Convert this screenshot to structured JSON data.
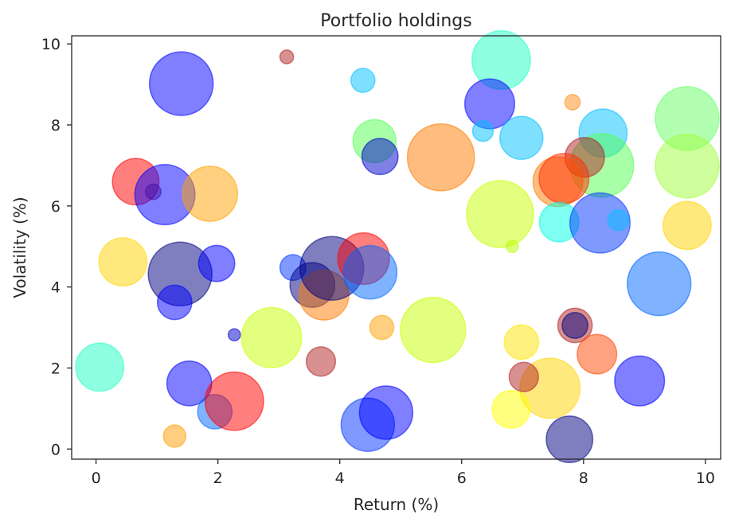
{
  "chart_data": {
    "type": "scatter",
    "title": "Portfolio holdings",
    "xlabel": "Return (%)",
    "ylabel": "Volatility (%)",
    "xlim": [
      -0.4,
      10.25
    ],
    "ylim": [
      -0.25,
      10.2
    ],
    "xticks": [
      "0",
      "2",
      "4",
      "6",
      "8",
      "10"
    ],
    "yticks": [
      "0",
      "2",
      "4",
      "6",
      "8",
      "10"
    ],
    "grid": false,
    "legend": "none",
    "marker_alpha": 0.5,
    "note": "Each point: x = return, y = volatility, s = relative bubble size (0-1), c = color",
    "points": [
      {
        "x": 1.4,
        "y": 9.02,
        "s": 0.74,
        "c": "#0000ff"
      },
      {
        "x": 3.13,
        "y": 9.68,
        "s": 0.16,
        "c": "#b22222"
      },
      {
        "x": 4.38,
        "y": 9.1,
        "s": 0.28,
        "c": "#00bfff"
      },
      {
        "x": 6.65,
        "y": 9.6,
        "s": 0.68,
        "c": "#1dffc4"
      },
      {
        "x": 6.46,
        "y": 8.52,
        "s": 0.58,
        "c": "#0000ff"
      },
      {
        "x": 7.82,
        "y": 8.56,
        "s": 0.18,
        "c": "#ff8c1a"
      },
      {
        "x": 9.7,
        "y": 8.16,
        "s": 0.74,
        "c": "#66ff66"
      },
      {
        "x": 4.57,
        "y": 7.6,
        "s": 0.5,
        "c": "#52ff52"
      },
      {
        "x": 4.66,
        "y": 7.22,
        "s": 0.42,
        "c": "#0000cd"
      },
      {
        "x": 5.66,
        "y": 7.2,
        "s": 0.78,
        "c": "#ff7a00"
      },
      {
        "x": 6.35,
        "y": 7.85,
        "s": 0.24,
        "c": "#00bfff"
      },
      {
        "x": 6.98,
        "y": 7.68,
        "s": 0.5,
        "c": "#00bfff"
      },
      {
        "x": 8.32,
        "y": 7.8,
        "s": 0.56,
        "c": "#00bfff"
      },
      {
        "x": 8.3,
        "y": 7.0,
        "s": 0.74,
        "c": "#52ff52"
      },
      {
        "x": 8.02,
        "y": 7.2,
        "s": 0.46,
        "c": "#b22222"
      },
      {
        "x": 7.58,
        "y": 6.6,
        "s": 0.58,
        "c": "#ff7a00"
      },
      {
        "x": 7.68,
        "y": 6.68,
        "s": 0.58,
        "c": "#ff2a00"
      },
      {
        "x": 9.7,
        "y": 6.98,
        "s": 0.74,
        "c": "#9fff3c"
      },
      {
        "x": 0.65,
        "y": 6.6,
        "s": 0.54,
        "c": "#ff0000"
      },
      {
        "x": 0.94,
        "y": 6.35,
        "s": 0.18,
        "c": "#8b2250"
      },
      {
        "x": 1.13,
        "y": 6.28,
        "s": 0.7,
        "c": "#0000ff"
      },
      {
        "x": 1.87,
        "y": 6.3,
        "s": 0.64,
        "c": "#ffa200"
      },
      {
        "x": 6.63,
        "y": 5.8,
        "s": 0.78,
        "c": "#c8ff00"
      },
      {
        "x": 7.6,
        "y": 5.6,
        "s": 0.46,
        "c": "#00ffe4"
      },
      {
        "x": 8.27,
        "y": 5.58,
        "s": 0.7,
        "c": "#0033ff"
      },
      {
        "x": 8.57,
        "y": 5.65,
        "s": 0.24,
        "c": "#00bfff"
      },
      {
        "x": 9.7,
        "y": 5.52,
        "s": 0.56,
        "c": "#ffd400"
      },
      {
        "x": 6.83,
        "y": 5.0,
        "s": 0.14,
        "c": "#b6ff00"
      },
      {
        "x": 0.44,
        "y": 4.62,
        "s": 0.56,
        "c": "#ffd400"
      },
      {
        "x": 1.38,
        "y": 4.32,
        "s": 0.74,
        "c": "#000080"
      },
      {
        "x": 1.98,
        "y": 4.58,
        "s": 0.42,
        "c": "#0000ff"
      },
      {
        "x": 1.29,
        "y": 3.62,
        "s": 0.4,
        "c": "#0000ff"
      },
      {
        "x": 3.23,
        "y": 4.48,
        "s": 0.3,
        "c": "#0033ff"
      },
      {
        "x": 3.55,
        "y": 4.05,
        "s": 0.52,
        "c": "#000080"
      },
      {
        "x": 3.74,
        "y": 3.8,
        "s": 0.58,
        "c": "#ff7a00"
      },
      {
        "x": 3.87,
        "y": 4.46,
        "s": 0.74,
        "c": "#000080"
      },
      {
        "x": 4.39,
        "y": 4.7,
        "s": 0.6,
        "c": "#ff0000"
      },
      {
        "x": 4.5,
        "y": 4.36,
        "s": 0.62,
        "c": "#0066ff"
      },
      {
        "x": 9.24,
        "y": 4.08,
        "s": 0.74,
        "c": "#0066ff"
      },
      {
        "x": 2.27,
        "y": 2.82,
        "s": 0.14,
        "c": "#0000cd"
      },
      {
        "x": 2.88,
        "y": 2.75,
        "s": 0.7,
        "c": "#c8ff00"
      },
      {
        "x": 3.69,
        "y": 2.16,
        "s": 0.34,
        "c": "#b22222"
      },
      {
        "x": 4.69,
        "y": 3.0,
        "s": 0.28,
        "c": "#ffa200"
      },
      {
        "x": 5.53,
        "y": 2.94,
        "s": 0.76,
        "c": "#c8ff00"
      },
      {
        "x": 6.98,
        "y": 2.64,
        "s": 0.4,
        "c": "#ffe400"
      },
      {
        "x": 7.86,
        "y": 3.05,
        "s": 0.4,
        "c": "#b22222"
      },
      {
        "x": 7.86,
        "y": 3.05,
        "s": 0.3,
        "c": "#000080"
      },
      {
        "x": 8.22,
        "y": 2.34,
        "s": 0.46,
        "c": "#ff4500"
      },
      {
        "x": 0.06,
        "y": 2.02,
        "s": 0.56,
        "c": "#1dffc4"
      },
      {
        "x": 1.53,
        "y": 1.62,
        "s": 0.52,
        "c": "#0000ff"
      },
      {
        "x": 1.95,
        "y": 0.92,
        "s": 0.4,
        "c": "#0066ff"
      },
      {
        "x": 2.27,
        "y": 1.18,
        "s": 0.68,
        "c": "#ff0000"
      },
      {
        "x": 4.46,
        "y": 0.6,
        "s": 0.62,
        "c": "#0033ff"
      },
      {
        "x": 4.76,
        "y": 0.9,
        "s": 0.62,
        "c": "#0000ff"
      },
      {
        "x": 7.45,
        "y": 1.5,
        "s": 0.7,
        "c": "#ffd400"
      },
      {
        "x": 7.02,
        "y": 1.78,
        "s": 0.34,
        "c": "#b22222"
      },
      {
        "x": 6.81,
        "y": 0.98,
        "s": 0.44,
        "c": "#ffff00"
      },
      {
        "x": 8.92,
        "y": 1.68,
        "s": 0.58,
        "c": "#0000ff"
      },
      {
        "x": 7.77,
        "y": 0.24,
        "s": 0.54,
        "c": "#000080"
      },
      {
        "x": 1.29,
        "y": 0.32,
        "s": 0.26,
        "c": "#ff9d00"
      }
    ]
  }
}
